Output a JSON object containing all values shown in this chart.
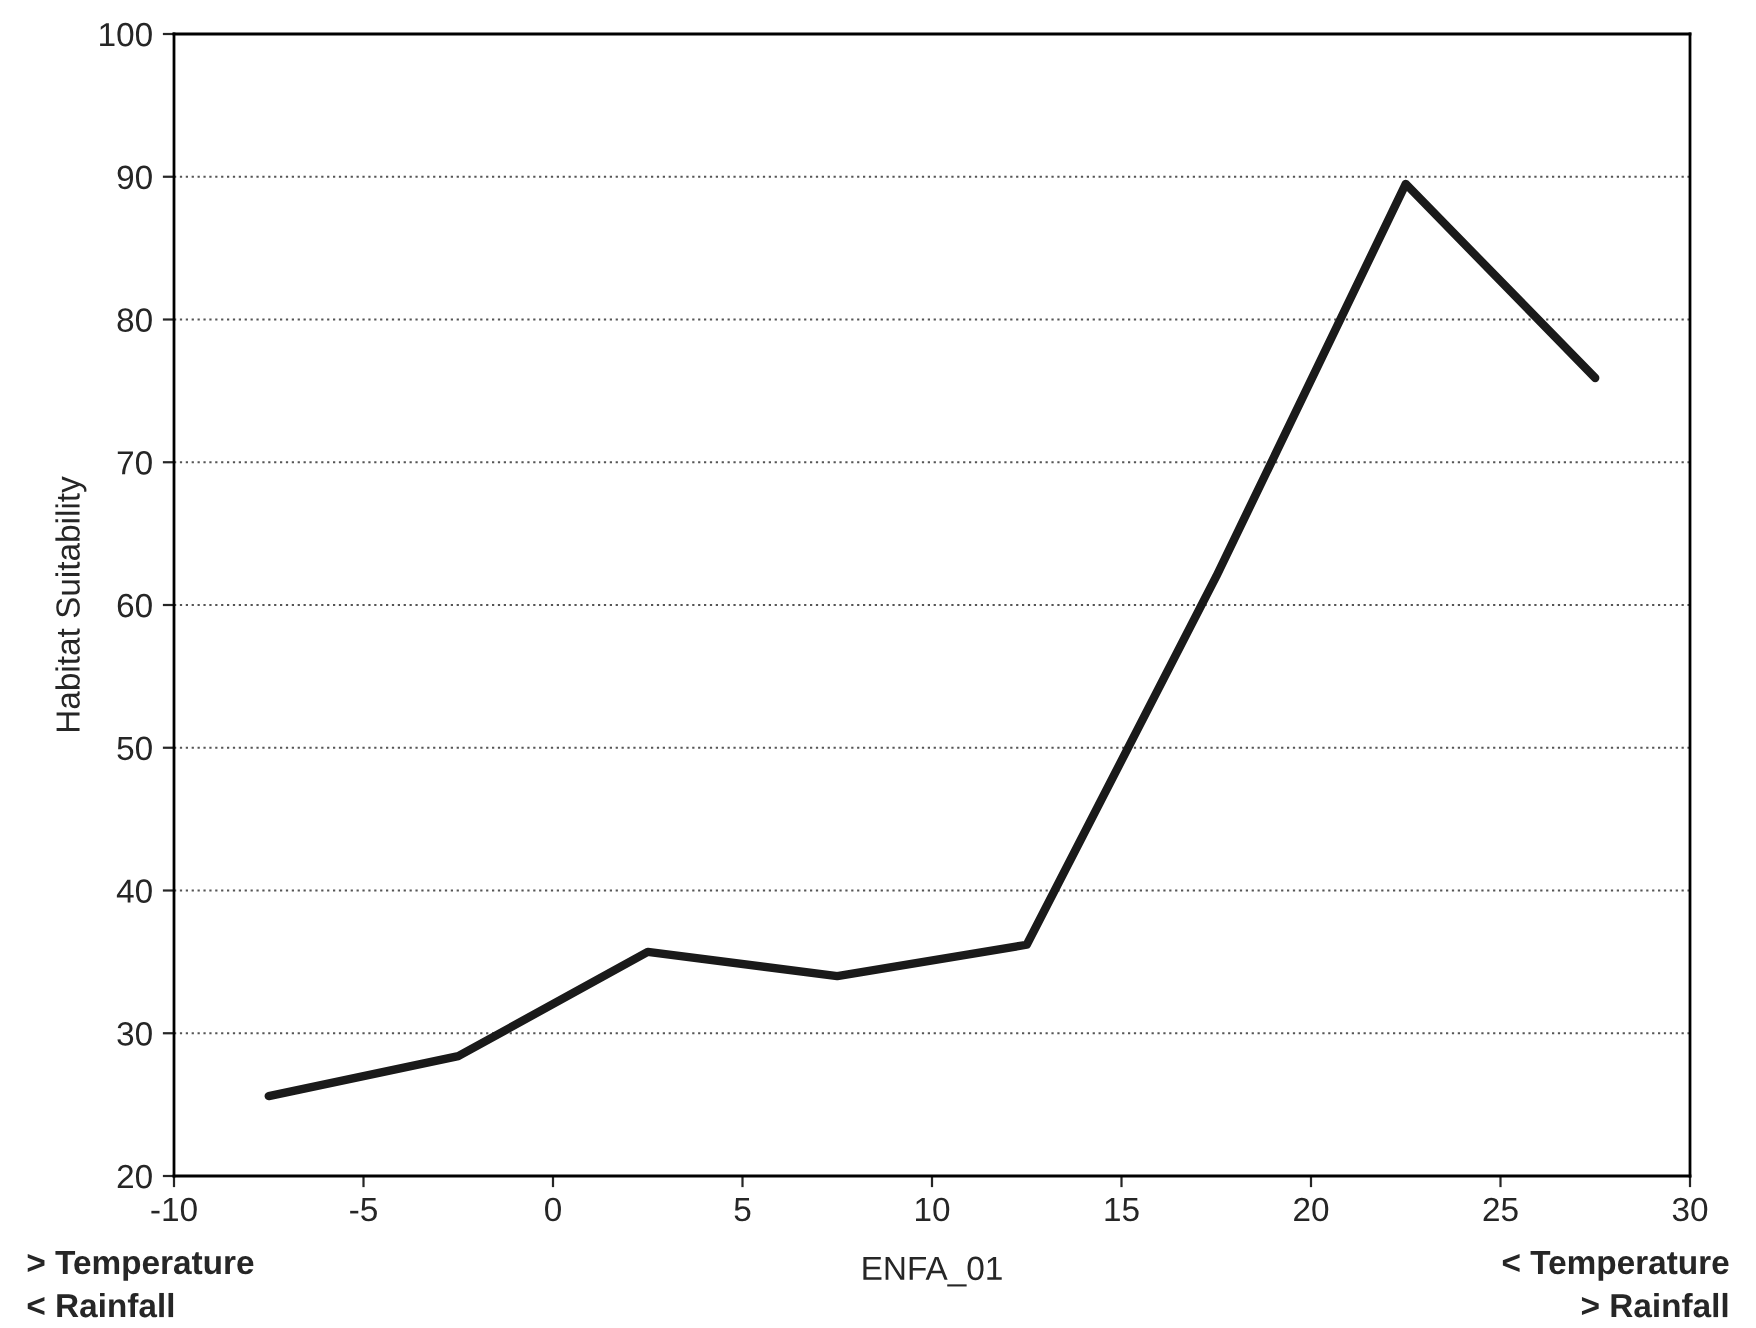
{
  "chart_data": {
    "type": "line",
    "xlabel": "ENFA_01",
    "ylabel": "Habitat Suitability",
    "x": [
      -7.5,
      -2.5,
      2.5,
      7.5,
      12.5,
      17.5,
      22.5,
      27.5
    ],
    "series": [
      {
        "color": "#1a1a1a",
        "values": [
          25.6,
          28.4,
          35.7,
          34.0,
          36.2,
          62,
          89.5,
          75.9
        ]
      }
    ],
    "xlim": [
      -10,
      30
    ],
    "xticks": [
      -10,
      -5,
      0,
      5,
      10,
      15,
      20,
      25,
      30
    ],
    "ylim": [
      20,
      100
    ],
    "yticks": [
      20,
      30,
      40,
      50,
      60,
      70,
      80,
      90,
      100
    ],
    "grid": "y",
    "marker": "none",
    "line_style": "solid",
    "annotations": [
      "> Temperature\n< Rainfall",
      "< Temperature\n> Rainfall"
    ]
  }
}
